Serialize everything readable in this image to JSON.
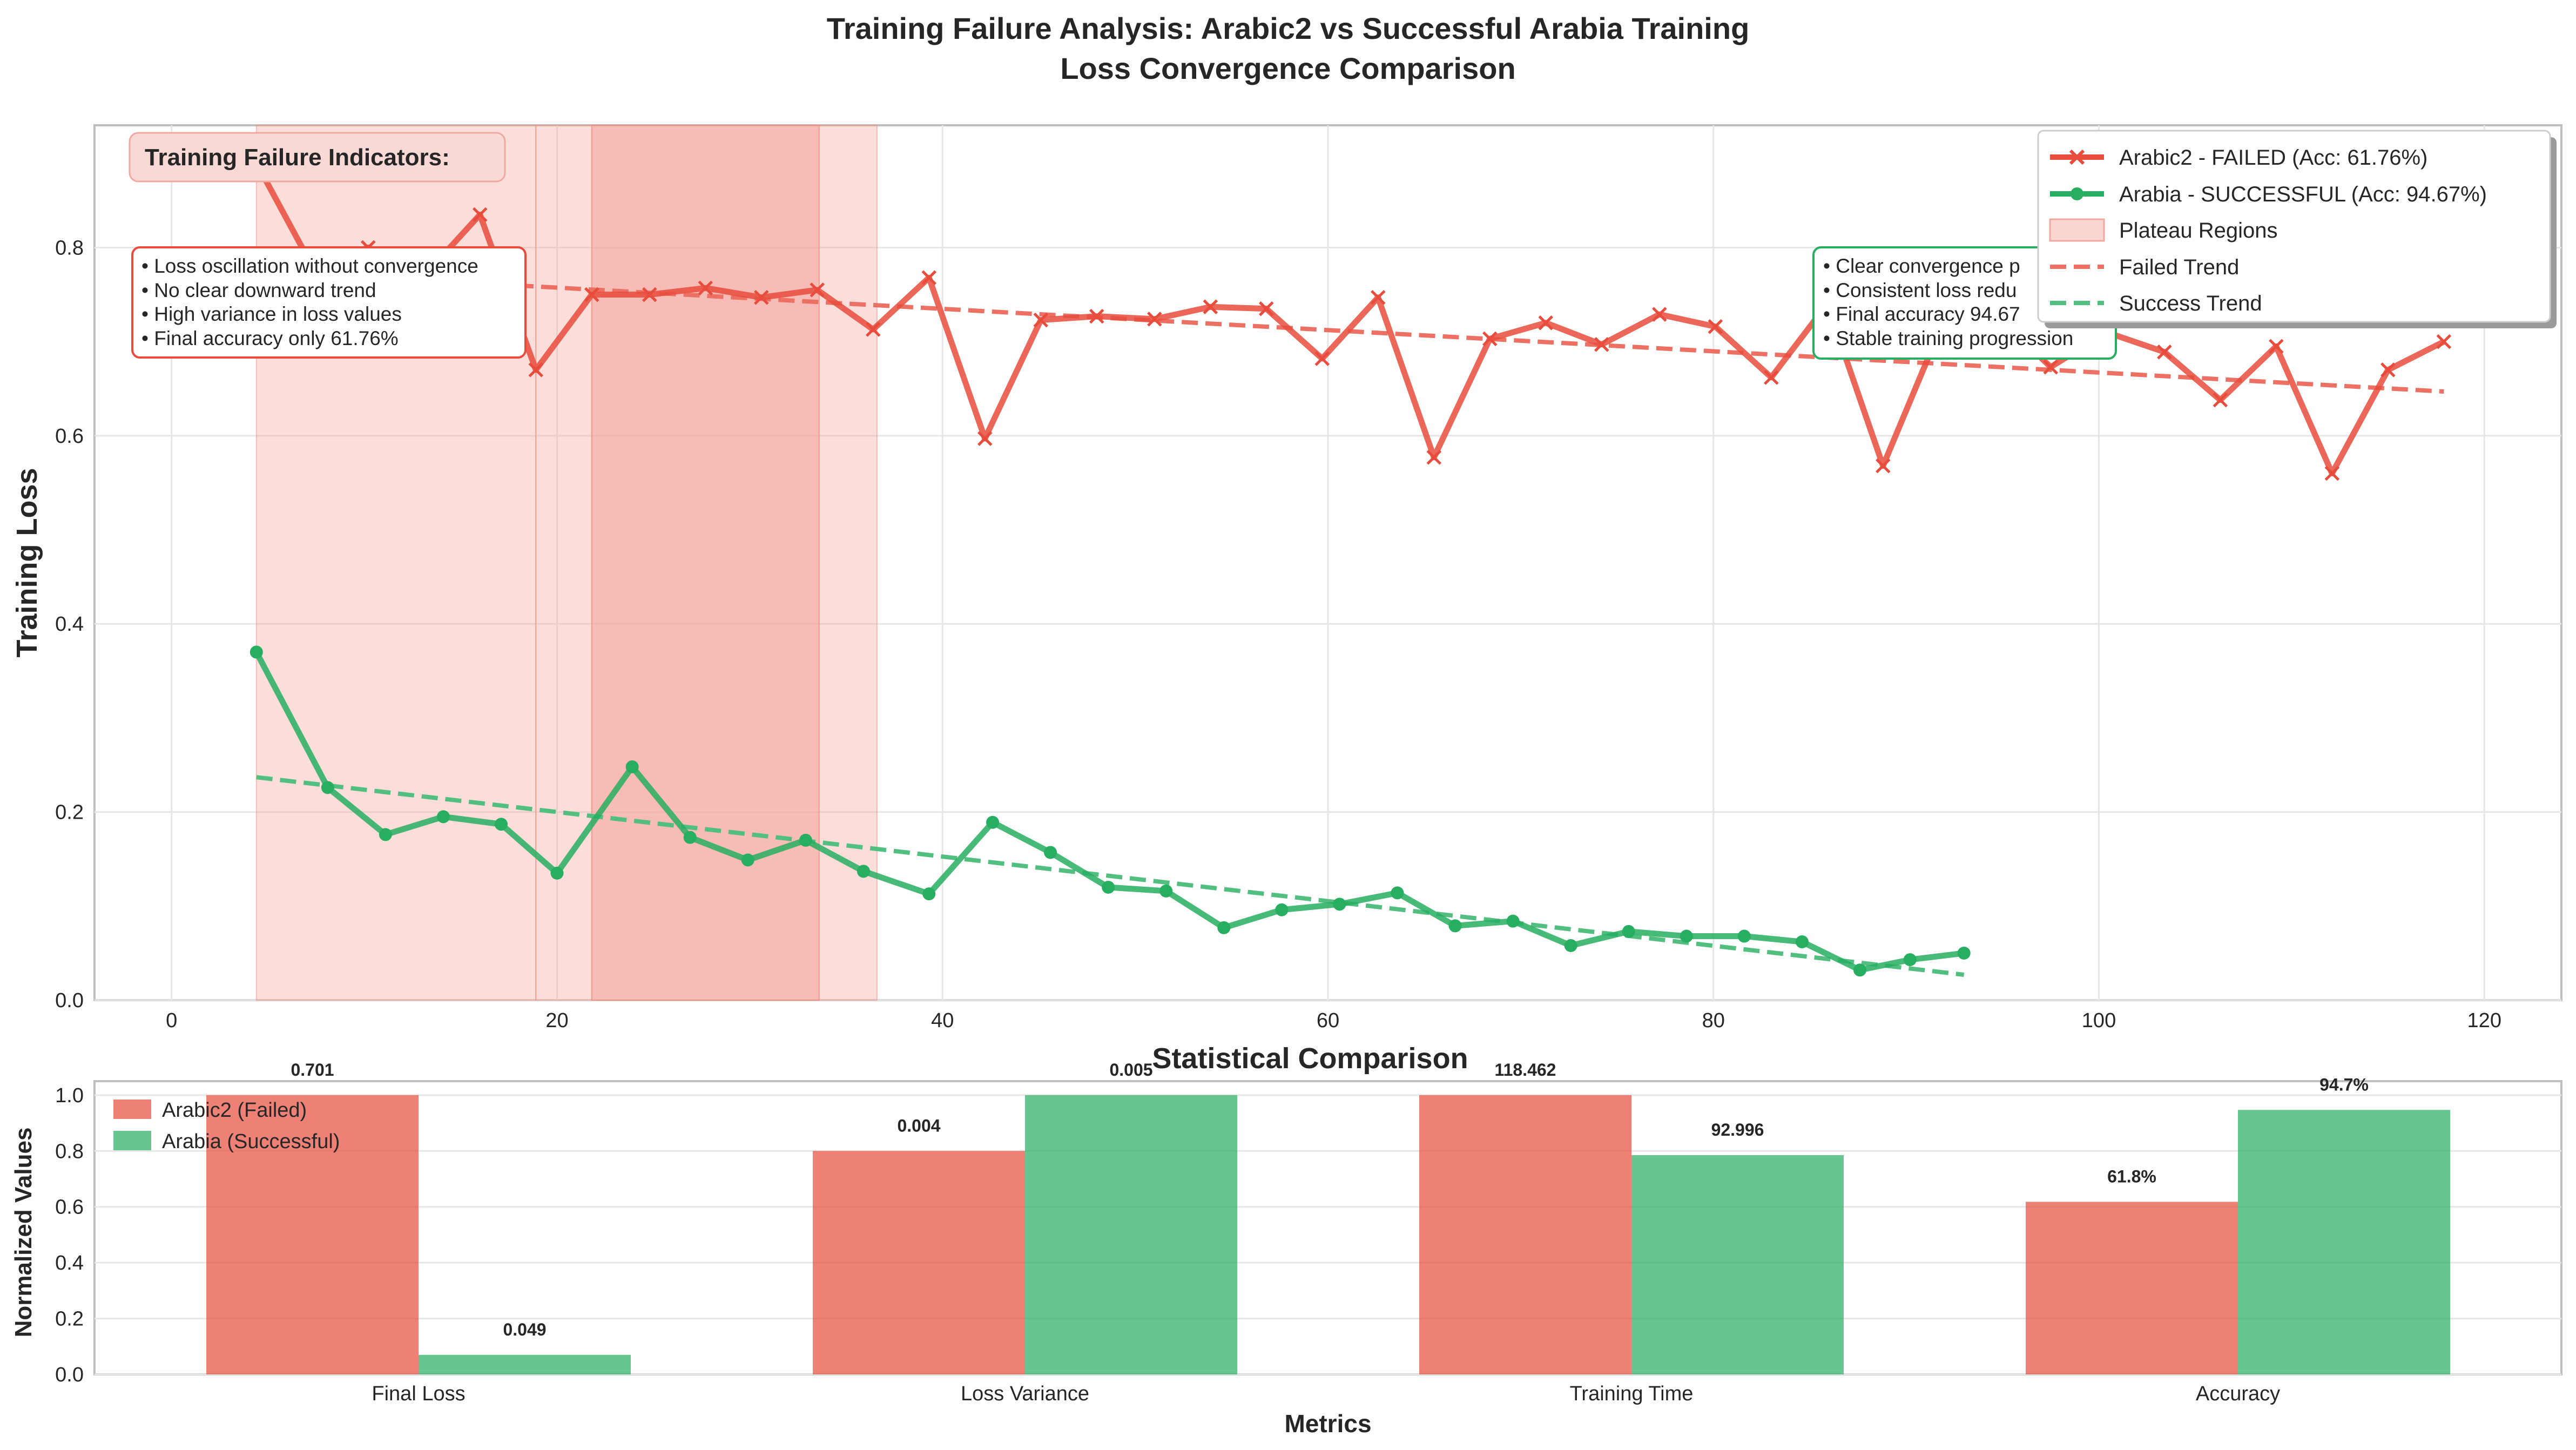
{
  "figure": {
    "title_line1": "Training Failure Analysis: Arabic2 vs Successful Arabia Training",
    "title_line2": "Loss Convergence Comparison"
  },
  "colors": {
    "failed": "#e74c3c",
    "success": "#27ae60",
    "plateau": "#f4a79d",
    "grid": "#e6e6e6",
    "axis": "#bfbfbf",
    "text": "#262626"
  },
  "annotations": {
    "failure_header": "Training Failure Indicators:",
    "failure_items": [
      "• Loss oscillation without convergence",
      "• No clear downward trend",
      "• High variance in loss values",
      "• Final accuracy only 61.76%"
    ],
    "success_items": [
      "• Clear convergence p",
      "• Consistent loss redu",
      "• Final accuracy 94.67",
      "• Stable training progression"
    ]
  },
  "chart_data": [
    {
      "type": "line",
      "title": "",
      "xlabel": "",
      "ylabel": "Training Loss",
      "xlim": [
        -4,
        124
      ],
      "ylim": [
        0,
        0.93
      ],
      "xticks": [
        0,
        20,
        40,
        60,
        80,
        100,
        120
      ],
      "yticks": [
        0.0,
        0.2,
        0.4,
        0.6,
        0.8
      ],
      "grid": true,
      "legend_position": "top-right",
      "legend": [
        "Arabic2 - FAILED (Acc: 61.76%)",
        "Arabia - SUCCESSFUL (Acc: 94.67%)",
        "Plateau Regions",
        "Failed Trend",
        "Success Trend"
      ],
      "plateau_regions": [
        [
          4.4,
          18.9
        ],
        [
          18.9,
          33.6
        ],
        [
          21.8,
          36.6
        ],
        [
          21.8,
          33.6
        ]
      ],
      "series": [
        {
          "name": "Arabic2 - FAILED (Acc: 61.76%)",
          "marker": "x",
          "x": [
            4.4,
            7.3,
            10.2,
            13.1,
            16.0,
            18.9,
            21.8,
            24.8,
            27.7,
            30.6,
            33.5,
            36.4,
            39.3,
            42.2,
            45.1,
            48.0,
            51.0,
            53.9,
            56.8,
            59.7,
            62.6,
            65.5,
            68.4,
            71.3,
            74.2,
            77.2,
            80.1,
            83.0,
            85.9,
            88.8,
            91.7,
            94.6,
            97.5,
            100.4,
            103.4,
            106.3,
            109.2,
            112.1,
            115.0,
            117.9
          ],
          "y": [
            0.89,
            0.78,
            0.8,
            0.77,
            0.835,
            0.67,
            0.75,
            0.75,
            0.757,
            0.747,
            0.755,
            0.713,
            0.768,
            0.597,
            0.723,
            0.727,
            0.724,
            0.737,
            0.735,
            0.682,
            0.747,
            0.577,
            0.703,
            0.72,
            0.697,
            0.729,
            0.716,
            0.662,
            0.74,
            0.568,
            0.71,
            0.73,
            0.673,
            0.71,
            0.689,
            0.638,
            0.695,
            0.56,
            0.67,
            0.7
          ]
        },
        {
          "name": "Arabia - SUCCESSFUL (Acc: 94.67%)",
          "marker": "o",
          "x": [
            4.4,
            8.1,
            11.1,
            14.1,
            17.1,
            20.0,
            23.9,
            26.9,
            29.9,
            32.9,
            35.9,
            39.3,
            42.6,
            45.6,
            48.6,
            51.6,
            54.6,
            57.6,
            60.6,
            63.6,
            66.6,
            69.6,
            72.6,
            75.6,
            78.6,
            81.6,
            84.6,
            87.6,
            90.2,
            93.0
          ],
          "y": [
            0.37,
            0.226,
            0.176,
            0.195,
            0.187,
            0.135,
            0.248,
            0.173,
            0.149,
            0.17,
            0.137,
            0.113,
            0.189,
            0.157,
            0.12,
            0.116,
            0.077,
            0.096,
            0.102,
            0.114,
            0.079,
            0.084,
            0.058,
            0.073,
            0.068,
            0.068,
            0.062,
            0.032,
            0.043,
            0.05
          ]
        },
        {
          "name": "Failed Trend",
          "style": "dashed",
          "x": [
            4.4,
            117.9
          ],
          "y": [
            0.775,
            0.647
          ]
        },
        {
          "name": "Success Trend",
          "style": "dashed",
          "x": [
            4.4,
            93.0
          ],
          "y": [
            0.237,
            0.027
          ]
        }
      ]
    },
    {
      "type": "bar",
      "title": "Statistical Comparison",
      "xlabel": "Metrics",
      "ylabel": "Normalized Values",
      "ylim": [
        0,
        1.05
      ],
      "yticks": [
        0.0,
        0.2,
        0.4,
        0.6,
        0.8,
        1.0
      ],
      "grid": true,
      "legend_position": "top-left",
      "categories": [
        "Final Loss",
        "Loss Variance",
        "Training Time",
        "Accuracy"
      ],
      "series": [
        {
          "name": "Arabic2 (Failed)",
          "values": [
            1.0,
            0.8,
            1.0,
            0.618
          ],
          "labels": [
            "0.701",
            "0.004",
            "118.462",
            "61.8%"
          ]
        },
        {
          "name": "Arabia (Successful)",
          "values": [
            0.07,
            1.0,
            0.785,
            0.947
          ],
          "labels": [
            "0.049",
            "0.005",
            "92.996",
            "94.7%"
          ]
        }
      ]
    }
  ]
}
